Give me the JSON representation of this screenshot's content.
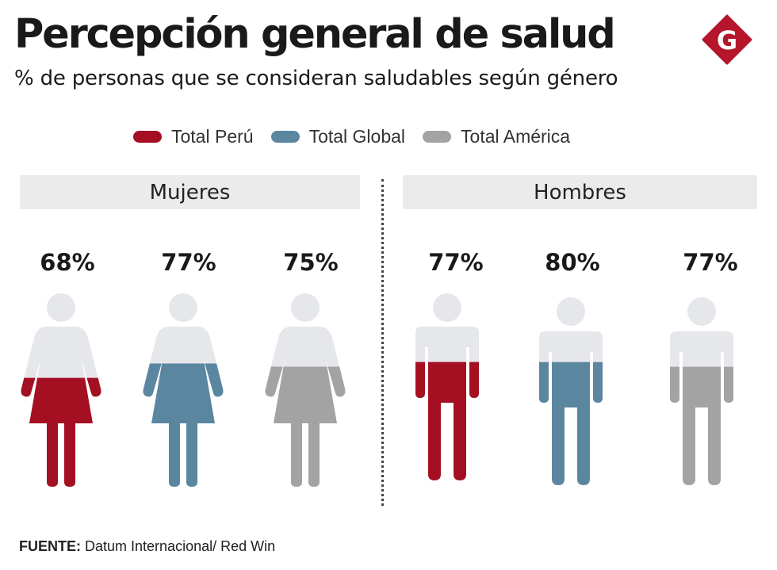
{
  "title": "Percepción general de salud",
  "subtitle": "% de personas que se consideran saludables según género",
  "logo_letter": "G",
  "colors": {
    "peru": "#a50f22",
    "global": "#5b86a0",
    "america": "#a3a3a3",
    "unfilled": "#e6e7eb",
    "logo": "#b5162b"
  },
  "legend": [
    {
      "label": "Total Perú",
      "color": "#a50f22"
    },
    {
      "label": "Total Global",
      "color": "#5b86a0"
    },
    {
      "label": "Total América",
      "color": "#a3a3a3"
    }
  ],
  "source": {
    "label": "FUENTE:",
    "text": "Datum Internacional/ Red Win"
  },
  "chart_data": {
    "type": "bar",
    "subtitle": "% de personas que se consideran saludables según género",
    "categories": [
      "Mujeres",
      "Hombres"
    ],
    "series": [
      {
        "name": "Total Perú",
        "values": [
          68,
          77
        ]
      },
      {
        "name": "Total Global",
        "values": [
          77,
          80
        ]
      },
      {
        "name": "Total América",
        "values": [
          75,
          77
        ]
      }
    ],
    "value_labels": [
      [
        "68%",
        "77%",
        "75%"
      ],
      [
        "77%",
        "80%",
        "77%"
      ]
    ],
    "ylim": [
      0,
      100
    ]
  }
}
